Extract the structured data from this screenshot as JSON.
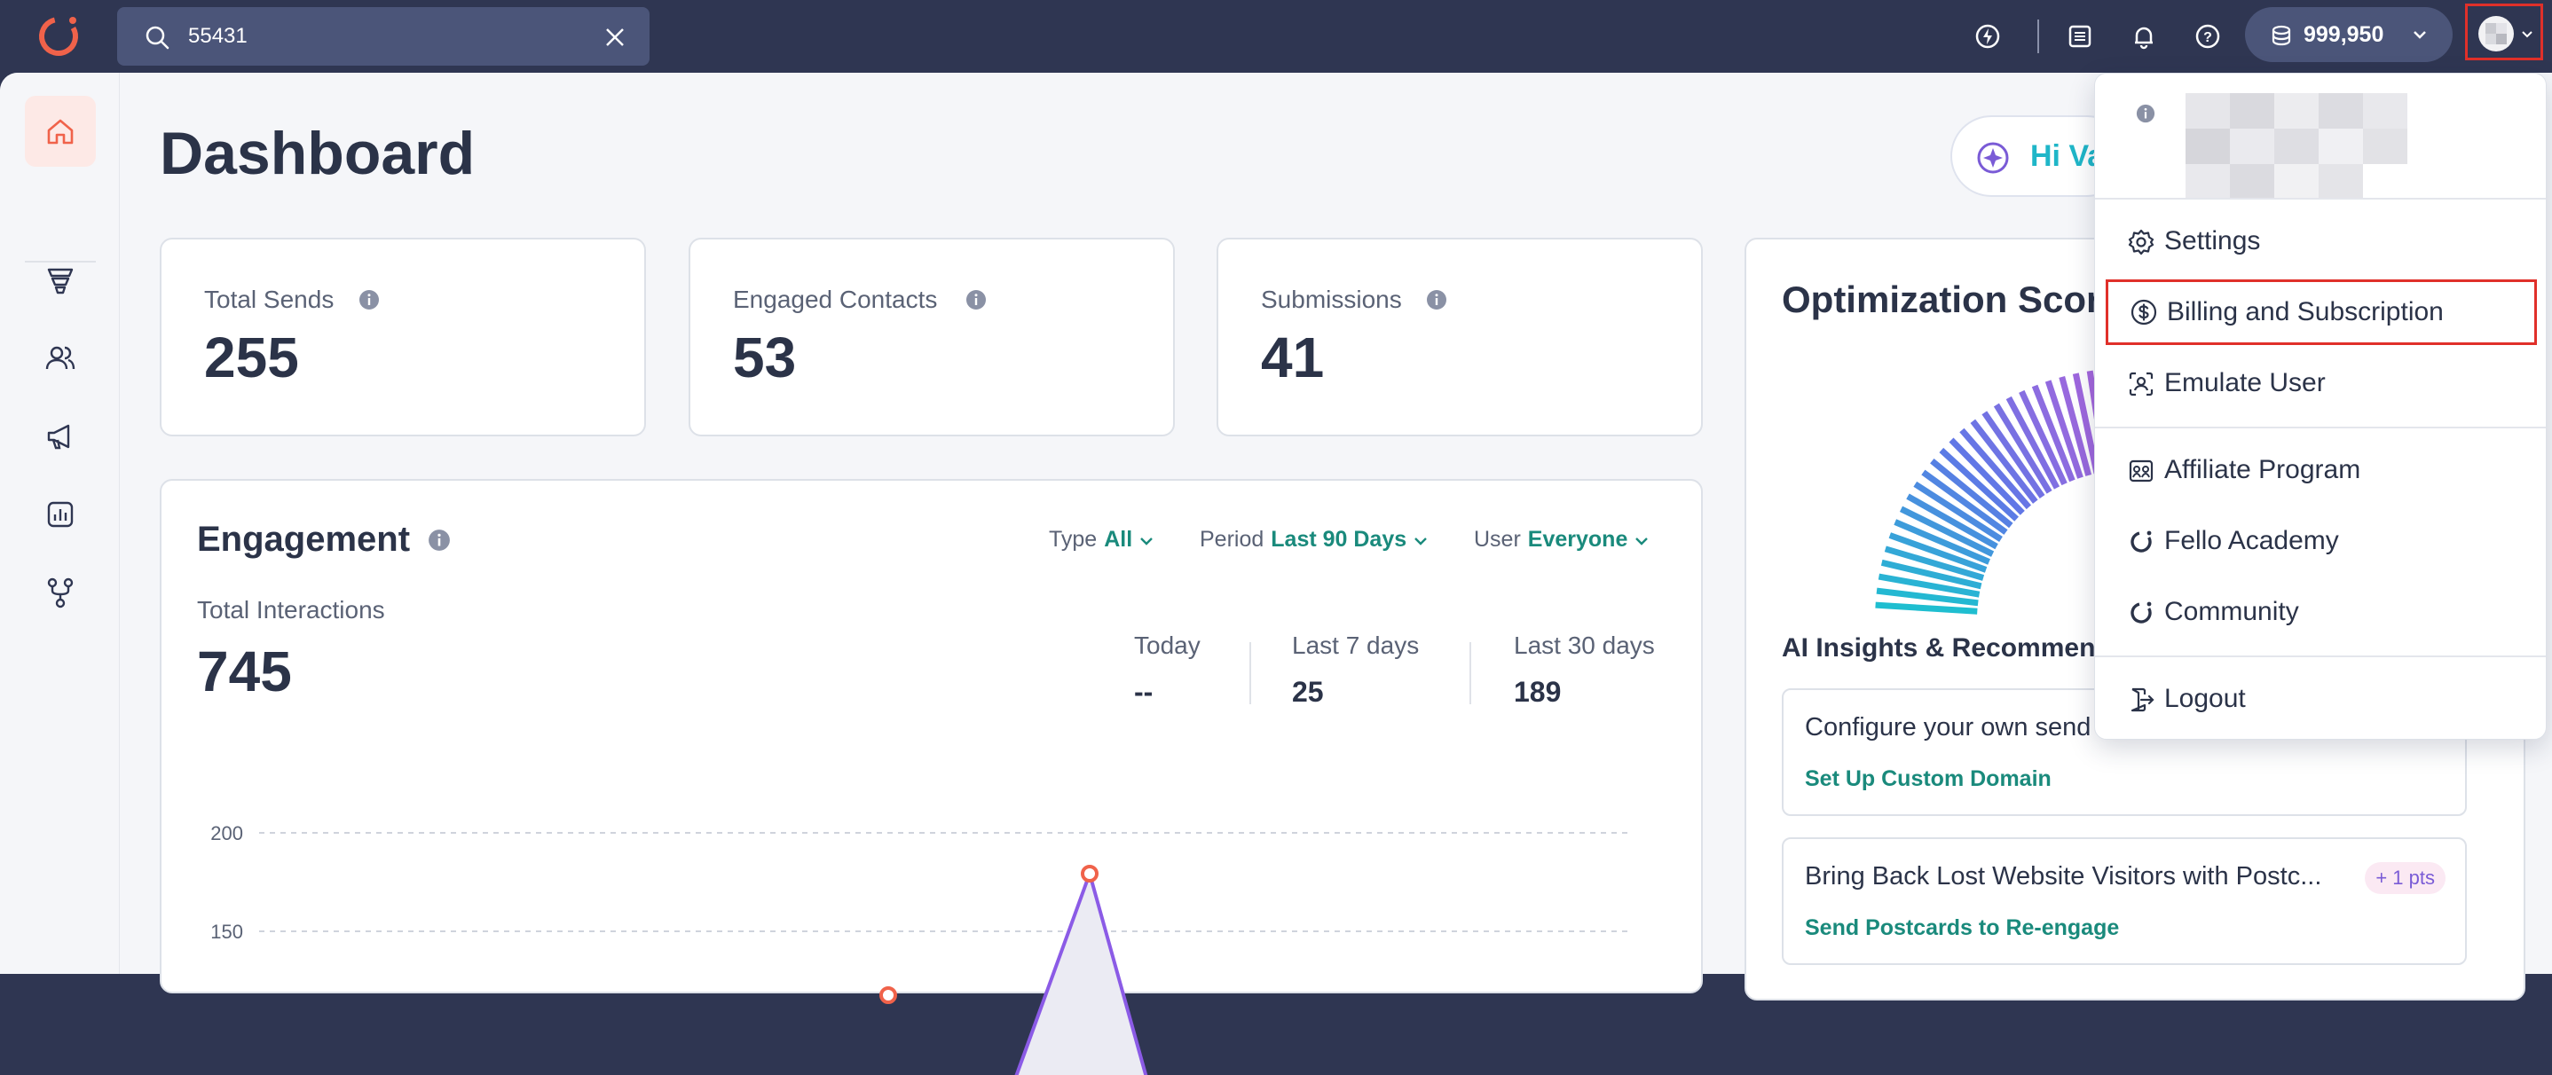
{
  "topbar": {
    "search_value": "55431",
    "credits": "999,950"
  },
  "sidebar": {
    "items": [
      {
        "name": "home",
        "active": true
      },
      {
        "name": "funnel"
      },
      {
        "name": "contacts"
      },
      {
        "name": "campaigns"
      },
      {
        "name": "reports"
      },
      {
        "name": "workflows"
      }
    ]
  },
  "main": {
    "title": "Dashboard",
    "hi_button": "Hi Va",
    "stats": [
      {
        "label": "Total Sends",
        "value": "255"
      },
      {
        "label": "Engaged Contacts",
        "value": "53"
      },
      {
        "label": "Submissions",
        "value": "41"
      }
    ],
    "engagement": {
      "title": "Engagement",
      "filters": {
        "type_label": "Type",
        "type_value": "All",
        "period_label": "Period",
        "period_value": "Last 90 Days",
        "user_label": "User",
        "user_value": "Everyone"
      },
      "total_label": "Total Interactions",
      "total_value": "745",
      "periods": [
        {
          "label": "Today",
          "value": "--"
        },
        {
          "label": "Last 7 days",
          "value": "25"
        },
        {
          "label": "Last 30 days",
          "value": "189"
        }
      ]
    },
    "optimization": {
      "title": "Optimization Score",
      "insights_title": "AI Insights & Recommendations",
      "recommendations": [
        {
          "text": "Configure your own send",
          "link": "Set Up Custom Domain"
        },
        {
          "text": "Bring Back Lost Website Visitors with Postc...",
          "link": "Send Postcards to Re-engage",
          "points": "+ 1 pts"
        }
      ]
    }
  },
  "chart_data": {
    "type": "line",
    "y_ticks": [
      "200",
      "150"
    ],
    "ylim": [
      100,
      200
    ],
    "grid": true,
    "visible_points": [
      {
        "y": 180
      },
      {
        "y": 120
      }
    ]
  },
  "user_menu": {
    "items": [
      {
        "label": "Settings",
        "icon": "gear-icon"
      },
      {
        "label": "Billing and Subscription",
        "icon": "dollar-circle-icon",
        "highlighted": true
      },
      {
        "label": "Emulate User",
        "icon": "emulate-user-icon"
      },
      {
        "label": "Affiliate Program",
        "icon": "affiliate-icon"
      },
      {
        "label": "Fello Academy",
        "icon": "fello-logo-icon"
      },
      {
        "label": "Community",
        "icon": "fello-logo-icon"
      },
      {
        "label": "Logout",
        "icon": "logout-icon"
      }
    ]
  },
  "colors": {
    "topbar": "#2f3652",
    "accent_teal": "#1a8a7c",
    "brand_orange": "#f0624a",
    "highlight_red": "#e0302a"
  }
}
